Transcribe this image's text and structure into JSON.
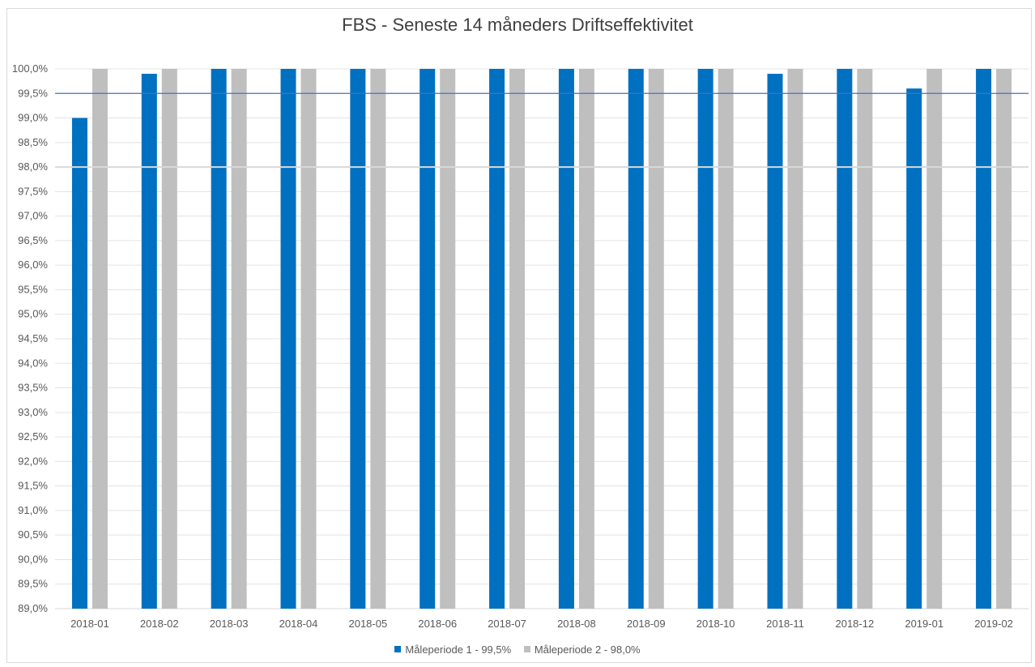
{
  "chart_data": {
    "type": "bar",
    "title": "FBS - Seneste 14 måneders Driftseffektivitet",
    "xlabel": "",
    "ylabel": "",
    "categories": [
      "2018-01",
      "2018-02",
      "2018-03",
      "2018-04",
      "2018-05",
      "2018-06",
      "2018-07",
      "2018-08",
      "2018-09",
      "2018-10",
      "2018-11",
      "2018-12",
      "2019-01",
      "2019-02"
    ],
    "series": [
      {
        "name": "Måleperiode 1 - 99,5%",
        "color": "#0070c0",
        "values": [
          99.0,
          99.9,
          100.0,
          100.0,
          100.0,
          100.0,
          100.0,
          100.0,
          100.0,
          100.0,
          99.9,
          100.0,
          99.6,
          100.0
        ]
      },
      {
        "name": "Måleperiode 2 - 98,0%",
        "color": "#bfbfbf",
        "values": [
          100.0,
          100.0,
          100.0,
          100.0,
          100.0,
          100.0,
          100.0,
          100.0,
          100.0,
          100.0,
          100.0,
          100.0,
          100.0,
          100.0
        ]
      }
    ],
    "reference_lines": [
      {
        "value": 99.5,
        "color": "#4472c4"
      },
      {
        "value": 98.0,
        "color": "#d9d9d9"
      }
    ],
    "ylim": [
      89.0,
      100.0
    ],
    "ytick_step": 0.5,
    "ytick_labels": [
      "89,0%",
      "89,5%",
      "90,0%",
      "90,5%",
      "91,0%",
      "91,5%",
      "92,0%",
      "92,5%",
      "93,0%",
      "93,5%",
      "94,0%",
      "94,5%",
      "95,0%",
      "95,5%",
      "96,0%",
      "96,5%",
      "97,0%",
      "97,5%",
      "98,0%",
      "98,5%",
      "99,0%",
      "99,5%",
      "100,0%"
    ],
    "grid": true,
    "legend_position": "bottom"
  }
}
